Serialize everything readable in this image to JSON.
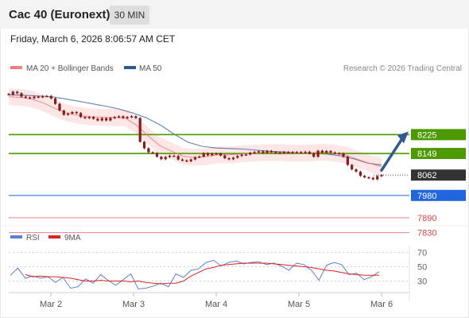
{
  "header": {
    "title": "Cac 40 (Euronext)",
    "period": "30 MIN",
    "datetime": "Friday, March 6, 2026 8:06:57 AM CET"
  },
  "legend": {
    "ma20": "MA 20 + Bollinger Bands",
    "ma50": "MA 50",
    "copyright": "Research © 2026 Trading Central",
    "rsi": "RSI",
    "rsi_ma": "9MA"
  },
  "colors": {
    "ma20": "#f08080",
    "bollinger_fill": "#fde3e3",
    "ma50": "#2e5a94",
    "candle": "#8b1a1a",
    "resistance": "#4c9a00",
    "pivot": "#2266dd",
    "support": "#e04040",
    "last_price": "#333333",
    "rsi": "#5a7fd6",
    "rsi_ma": "#dd2222"
  },
  "chart_data": [
    {
      "type": "candlestick",
      "x_ticks": [
        "Mar 2",
        "Mar 3",
        "Mar 4",
        "Mar 5",
        "Mar 6"
      ],
      "ylim": [
        7800,
        8460
      ],
      "series": [
        {
          "name": "Cac 40 (Euronext)",
          "values": [
            8386,
            8398,
            8392,
            8378,
            8375,
            8372,
            8378,
            8376,
            8380,
            8381,
            8371,
            8349,
            8322,
            8305,
            8310,
            8316,
            8312,
            8296,
            8292,
            8296,
            8289,
            8282,
            8291,
            8282,
            8292,
            8296,
            8299,
            8292,
            8296,
            8299,
            8292,
            8196,
            8170,
            8154,
            8151,
            8136,
            8126,
            8135,
            8140,
            8139,
            8125,
            8121,
            8118,
            8125,
            8134,
            8137,
            8150,
            8142,
            8148,
            8149,
            8141,
            8130,
            8126,
            8132,
            8139,
            8144,
            8145,
            8152,
            8155,
            8158,
            8152,
            8159,
            8155,
            8153,
            8151,
            8155,
            8153,
            8155,
            8155,
            8153,
            8156,
            8149,
            8136,
            8160,
            8152,
            8159,
            8153,
            8150,
            8149,
            8136,
            8103,
            8085,
            8076,
            8059,
            8053,
            8051,
            8045,
            8058,
            8062
          ]
        },
        {
          "name": "MA 50",
          "values": [
            8385,
            8384,
            8381,
            8378,
            8370,
            8360,
            8350,
            8340,
            8328,
            8312,
            8292,
            8263,
            8226,
            8194,
            8178,
            8171,
            8169,
            8167,
            8162,
            8158,
            8155,
            8151,
            8149,
            8147,
            8140,
            8127,
            8110,
            8103
          ]
        },
        {
          "name": "MA 20",
          "values": [
            8378,
            8375,
            8368,
            8352,
            8330,
            8312,
            8302,
            8297,
            8295,
            8294,
            8292,
            8262,
            8218,
            8180,
            8158,
            8138,
            8133,
            8137,
            8144,
            8143,
            8147,
            8150,
            8153,
            8153,
            8151,
            8150,
            8152,
            8155,
            8150,
            8142,
            8125,
            8109,
            8096
          ]
        }
      ],
      "levels": [
        {
          "label": "8225",
          "value": 8225,
          "kind": "resistance"
        },
        {
          "label": "8149",
          "value": 8149,
          "kind": "resistance"
        },
        {
          "label": "8062",
          "value": 8062,
          "kind": "last"
        },
        {
          "label": "7980",
          "value": 7980,
          "kind": "pivot"
        },
        {
          "label": "7890",
          "value": 7890,
          "kind": "support"
        },
        {
          "label": "7830",
          "value": 7830,
          "kind": "support"
        }
      ],
      "grid": false
    },
    {
      "type": "line",
      "ylim": [
        15,
        75
      ],
      "y_ticks": [
        "70",
        "50",
        "30"
      ],
      "series": [
        {
          "name": "RSI",
          "values": [
            38,
            48,
            34,
            37,
            34,
            36,
            28,
            35,
            20,
            22,
            33,
            27,
            39,
            31,
            24,
            32,
            40,
            19,
            20,
            23,
            27,
            22,
            40,
            35,
            45,
            47,
            56,
            59,
            51,
            56,
            58,
            54,
            56,
            57,
            53,
            55,
            51,
            45,
            55,
            53,
            45,
            31,
            52,
            56,
            53,
            39,
            41,
            32,
            36,
            43
          ]
        },
        {
          "name": "9MA",
          "values": [
            39,
            36,
            37,
            36,
            36,
            35,
            34,
            32,
            30,
            30,
            31,
            30,
            30,
            30,
            29,
            30,
            28,
            27,
            26,
            27,
            27,
            30,
            37,
            42,
            47,
            49,
            52,
            53,
            54,
            55,
            55,
            55,
            55,
            54,
            53,
            52,
            51,
            50,
            49,
            47,
            45,
            44,
            42,
            40,
            39,
            38,
            38,
            38
          ]
        }
      ]
    }
  ]
}
